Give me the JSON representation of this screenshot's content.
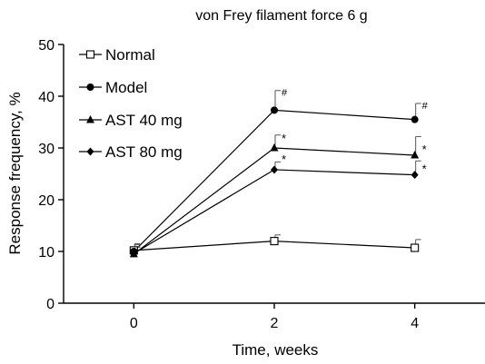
{
  "chart_data": {
    "type": "line",
    "title": "von Frey filament force 6 g",
    "xlabel": "Time, weeks",
    "ylabel": "Response frequency, %",
    "x": [
      0,
      2,
      4
    ],
    "x_ticks": [
      "0",
      "2",
      "4"
    ],
    "y_ticks": [
      "0",
      "10",
      "20",
      "30",
      "40",
      "50"
    ],
    "xlim": [
      -1,
      5
    ],
    "ylim": [
      0,
      50
    ],
    "grid": false,
    "legend_position": "top-left",
    "series": [
      {
        "name": "Normal",
        "marker": "open-square",
        "values": [
          10.2,
          12.0,
          10.7
        ],
        "errors": [
          1.3,
          1.2,
          1.6
        ],
        "annotations": [
          "",
          "",
          ""
        ]
      },
      {
        "name": "Model",
        "marker": "circle",
        "values": [
          10.0,
          37.3,
          35.5
        ],
        "errors": [
          1.3,
          3.8,
          3.1
        ],
        "annotations": [
          "",
          "#",
          "#"
        ]
      },
      {
        "name": "AST 40 mg",
        "marker": "triangle",
        "values": [
          9.5,
          30.0,
          28.6
        ],
        "errors": [
          1.3,
          2.5,
          3.6
        ],
        "annotations": [
          "",
          "*",
          "*"
        ]
      },
      {
        "name": "AST 80 mg",
        "marker": "diamond",
        "values": [
          9.6,
          25.8,
          24.8
        ],
        "errors": [
          1.3,
          1.5,
          2.7
        ],
        "annotations": [
          "",
          "*",
          "*"
        ]
      }
    ]
  }
}
